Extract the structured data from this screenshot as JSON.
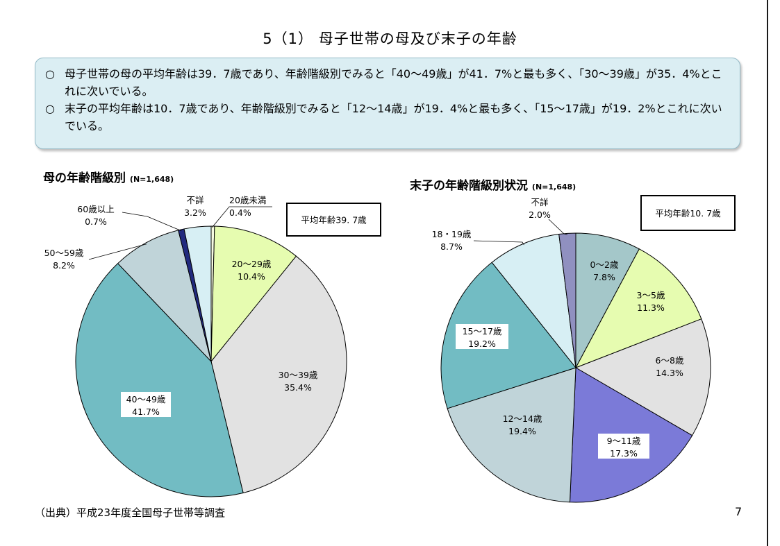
{
  "page": {
    "title": "5（1） 母子世帯の母及び末子の年齢",
    "summary": [
      {
        "mark": "○",
        "text": "母子世帯の母の平均年齢は39．7歳であり、年齢階級別でみると「40〜49歳」が41．7%と最も多く、「30〜39歳」が35．4%とこれに次いでいる。"
      },
      {
        "mark": "○",
        "text": "末子の平均年齢は10．7歳であり、年齢階級別でみると「12〜14歳」が19．4%と最も多く、「15〜17歳」が19．2%とこれに次いでいる。"
      }
    ],
    "source": "（出典）平成23年度全国母子世帯等調査",
    "page_number": "7"
  },
  "chart_data": [
    {
      "type": "pie",
      "title": "母の年齢階級別",
      "n_label": "(N=1,648)",
      "annotation": "平均年齢39. 7歳",
      "start_angle_deg": 0,
      "direction": "clockwise",
      "slices": [
        {
          "label": "20歳未満",
          "value": 0.4,
          "color": "#f6fae2"
        },
        {
          "label": "20〜29歳",
          "value": 10.4,
          "color": "#e6fcb0"
        },
        {
          "label": "30〜39歳",
          "value": 35.4,
          "color": "#e2e2e2"
        },
        {
          "label": "40〜49歳",
          "value": 41.7,
          "color": "#72bcc3"
        },
        {
          "label": "50〜59歳",
          "value": 8.2,
          "color": "#c0d4d9"
        },
        {
          "label": "60歳以上",
          "value": 0.7,
          "color": "#212a7e"
        },
        {
          "label": "不詳",
          "value": 3.2,
          "color": "#d7eff4"
        }
      ]
    },
    {
      "type": "pie",
      "title": "末子の年齢階級別状況",
      "n_label": "(N=1,648)",
      "annotation": "平均年齢10. 7歳",
      "start_angle_deg": 0,
      "direction": "clockwise",
      "slices": [
        {
          "label": "0〜2歳",
          "value": 7.8,
          "color": "#a4c7c9"
        },
        {
          "label": "3〜5歳",
          "value": 11.3,
          "color": "#e6fcb0"
        },
        {
          "label": "6〜8歳",
          "value": 14.3,
          "color": "#e2e2e2"
        },
        {
          "label": "9〜11歳",
          "value": 17.3,
          "color": "#7b7ad8"
        },
        {
          "label": "12〜14歳",
          "value": 19.4,
          "color": "#c0d4d9"
        },
        {
          "label": "15〜17歳",
          "value": 19.2,
          "color": "#72bcc3"
        },
        {
          "label": "18・19歳",
          "value": 8.7,
          "color": "#d7eff4"
        },
        {
          "label": "不詳",
          "value": 2.0,
          "color": "#9090c0"
        }
      ]
    }
  ]
}
